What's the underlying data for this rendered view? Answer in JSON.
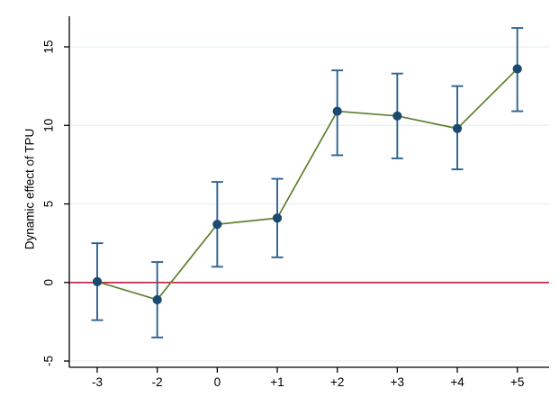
{
  "chart_data": {
    "type": "line",
    "subtype": "event-study-with-error-bars",
    "title": "",
    "xlabel": "",
    "ylabel": "Dynamic effect of TPU",
    "categories": [
      "-3",
      "-2",
      "0",
      "+1",
      "+2",
      "+3",
      "+4",
      "+5"
    ],
    "series": [
      {
        "name": "Dynamic effect of TPU",
        "values": [
          0.05,
          -1.1,
          3.7,
          4.1,
          10.9,
          10.6,
          9.8,
          13.6
        ],
        "ci_lower": [
          -2.4,
          -3.5,
          1.0,
          1.6,
          8.1,
          7.9,
          7.2,
          10.9
        ],
        "ci_upper": [
          2.5,
          1.3,
          6.4,
          6.6,
          13.5,
          13.3,
          12.5,
          16.2
        ]
      }
    ],
    "ylim": [
      -5.4,
      16.95
    ],
    "yticks": [
      -5,
      0,
      5,
      10,
      15
    ],
    "ytick_labels": [
      "-5",
      "0",
      "5",
      "10",
      "15"
    ],
    "xtick_labels": [
      "-3",
      "-2",
      "0",
      "+1",
      "+2",
      "+3",
      "+4",
      "+5"
    ],
    "ref_line_y": 0,
    "grid": true,
    "legend": "none",
    "colors": {
      "marker": "#1b4a70",
      "error_bar": "#2e6391",
      "series_line": "#5f8030",
      "ref_line": "#c41e3c",
      "gridline": "#e6f0f1",
      "axis": "#000000",
      "text": "#000000",
      "background": "#ffffff"
    }
  }
}
